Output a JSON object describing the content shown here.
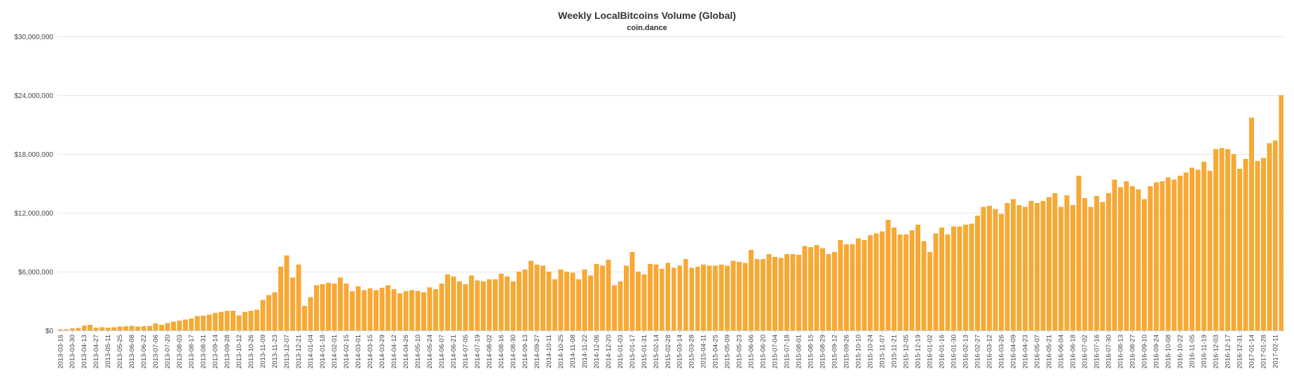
{
  "chart_data": {
    "type": "bar",
    "title": "Weekly LocalBitcoins Volume (Global)",
    "subtitle": "coin.dance",
    "xlabel": "",
    "ylabel": "",
    "ylim": [
      0,
      30000000
    ],
    "yticks": [
      0,
      6000000,
      12000000,
      18000000,
      24000000,
      30000000
    ],
    "ytick_labels": [
      "$0",
      "$6,000,000",
      "$12,000,000",
      "$18,000,000",
      "$24,000,000",
      "$30,000,000"
    ],
    "grid": true,
    "bar_color": "#f7a935",
    "start_date": "2013-03-16",
    "week_step_days": 7,
    "label_every": 2,
    "series": [
      {
        "values": [
          100000,
          120000,
          200000,
          260000,
          500000,
          580000,
          300000,
          320000,
          300000,
          330000,
          380000,
          420000,
          470000,
          380000,
          420000,
          460000,
          700000,
          580000,
          760000,
          900000,
          1000000,
          1100000,
          1200000,
          1450000,
          1500000,
          1600000,
          1800000,
          1900000,
          2000000,
          2000000,
          1550000,
          1900000,
          2000000,
          2100000,
          3100000,
          3600000,
          3900000,
          6500000,
          7650000,
          5400000,
          6700000,
          2500000,
          3400000,
          4600000,
          4700000,
          4850000,
          4800000,
          5400000,
          4800000,
          4000000,
          4500000,
          4100000,
          4300000,
          4100000,
          4350000,
          4600000,
          4200000,
          3800000,
          4000000,
          4100000,
          4050000,
          3900000,
          4400000,
          4200000,
          4800000,
          5700000,
          5500000,
          5000000,
          4700000,
          5600000,
          5100000,
          5000000,
          5200000,
          5200000,
          5800000,
          5500000,
          5000000,
          6000000,
          6200000,
          7100000,
          6700000,
          6600000,
          6000000,
          5200000,
          6200000,
          6000000,
          5900000,
          5200000,
          6200000,
          5600000,
          6800000,
          6600000,
          7200000,
          4600000,
          5000000,
          6600000,
          8000000,
          6000000,
          5700000,
          6800000,
          6700000,
          6300000,
          6900000,
          6400000,
          6600000,
          7300000,
          6400000,
          6500000,
          6700000,
          6600000,
          6600000,
          6700000,
          6600000,
          7100000,
          7000000,
          6900000,
          8200000,
          7300000,
          7300000,
          7800000,
          7500000,
          7400000,
          7800000,
          7800000,
          7700000,
          8600000,
          8500000,
          8700000,
          8400000,
          7800000,
          8000000,
          9200000,
          8800000,
          8800000,
          9400000,
          9200000,
          9700000,
          9900000,
          10100000,
          11300000,
          10500000,
          9800000,
          9800000,
          10200000,
          10800000,
          9100000,
          8000000,
          9900000,
          10500000,
          9800000,
          10600000,
          10600000,
          10800000,
          10900000,
          11700000,
          12600000,
          12700000,
          12400000,
          11900000,
          13000000,
          13400000,
          12800000,
          12600000,
          13200000,
          13000000,
          13200000,
          13600000,
          14000000,
          12600000,
          13800000,
          12800000,
          15800000,
          13500000,
          12600000,
          13700000,
          13100000,
          14000000,
          15400000,
          14600000,
          15200000,
          14700000,
          14400000,
          13400000,
          14700000,
          15100000,
          15200000,
          15600000,
          15400000,
          15800000,
          16100000,
          16600000,
          16400000,
          17200000,
          16300000,
          18500000,
          18600000,
          18500000,
          18000000,
          16500000,
          17500000,
          21700000,
          17300000,
          17600000,
          19100000,
          19400000,
          24000000
        ]
      }
    ]
  }
}
